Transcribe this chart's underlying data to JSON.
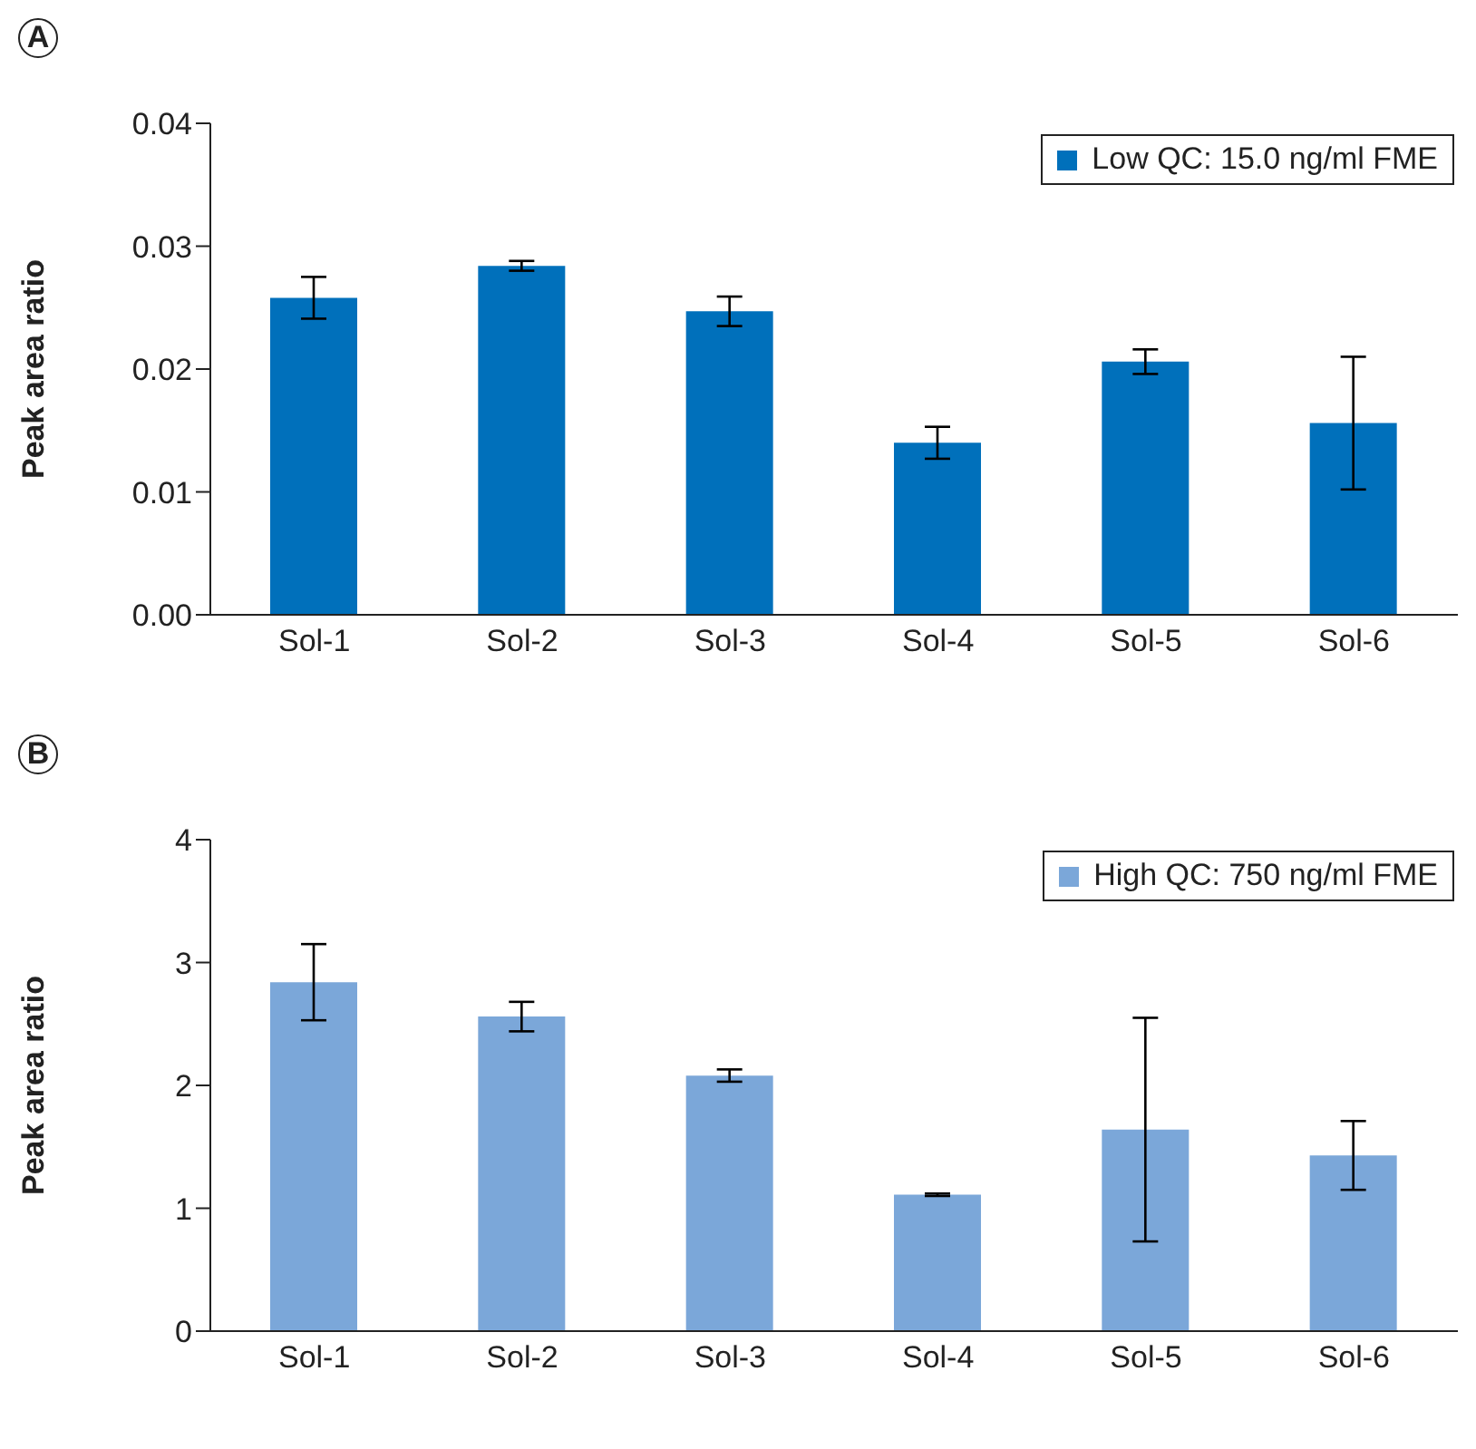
{
  "chart_data": [
    {
      "type": "bar",
      "title": "A",
      "categories": [
        "Sol-1",
        "Sol-2",
        "Sol-3",
        "Sol-4",
        "Sol-5",
        "Sol-6"
      ],
      "ylabel": "Peak area ratio",
      "ylim": [
        0,
        0.04
      ],
      "yticks": [
        {
          "value": 0,
          "label": "0.00"
        },
        0.01,
        0.02,
        0.03,
        0.04
      ],
      "legend": "top right",
      "series": [
        {
          "name": "Low QC: 15.0 ng/ml FME",
          "color": "#0070bb",
          "values": [
            0.0258,
            0.0284,
            0.0247,
            0.014,
            0.0206,
            0.0156
          ],
          "errors": [
            0.0017,
            0.0004,
            0.0012,
            0.0013,
            0.001,
            0.0054
          ]
        }
      ]
    },
    {
      "type": "bar",
      "title": "B",
      "categories": [
        "Sol-1",
        "Sol-2",
        "Sol-3",
        "Sol-4",
        "Sol-5",
        "Sol-6"
      ],
      "ylabel": "Peak area ratio",
      "ylim": [
        0,
        4
      ],
      "yticks": [
        0,
        1,
        2,
        3,
        4
      ],
      "legend": "top right",
      "series": [
        {
          "name": "High QC: 750 ng/ml FME",
          "color": "#7ba7d9",
          "values": [
            2.84,
            2.56,
            2.08,
            1.11,
            1.64,
            1.43
          ],
          "errors": [
            0.31,
            0.12,
            0.05,
            0.01,
            0.91,
            0.28
          ]
        }
      ]
    }
  ]
}
